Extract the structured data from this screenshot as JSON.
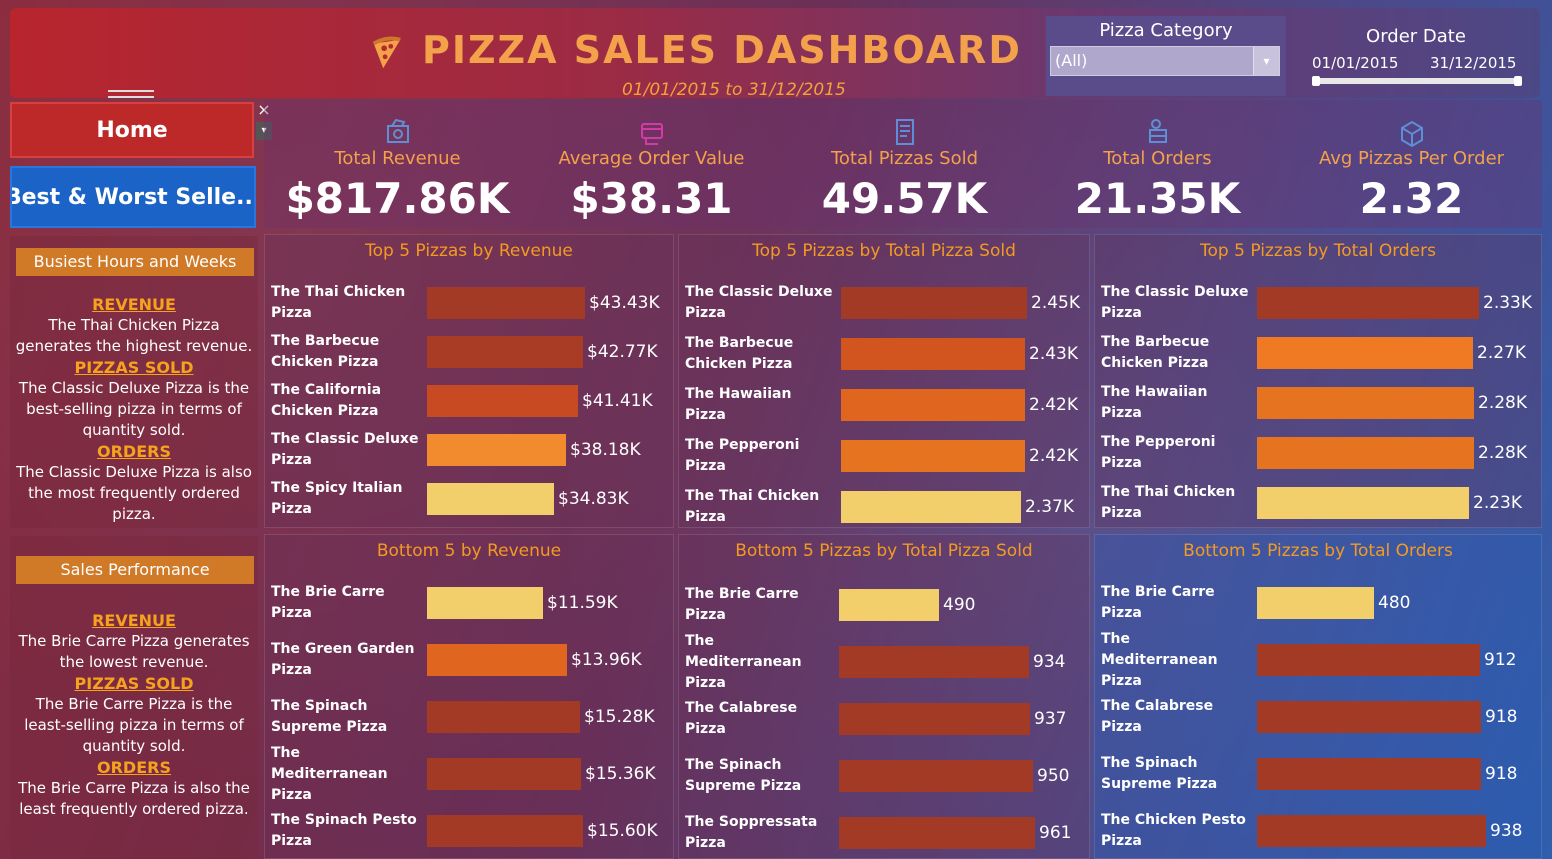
{
  "header": {
    "title": "PIZZA SALES DASHBOARD",
    "date_range": "01/01/2015  to 31/12/2015",
    "category_filter": {
      "label": "Pizza Category",
      "value": "(All)"
    },
    "order_date": {
      "label": "Order Date",
      "from": "01/01/2015",
      "to": "31/12/2015"
    }
  },
  "nav": {
    "home": "Home",
    "best_worst": "Best & Worst Selle...",
    "close": "×",
    "more": "▾"
  },
  "kpis": [
    {
      "label": "Total Revenue",
      "value": "$817.86K",
      "icon": "money-icon"
    },
    {
      "label": "Average Order Value",
      "value": "$38.31",
      "icon": "card-icon"
    },
    {
      "label": "Total Pizzas Sold",
      "value": "49.57K",
      "icon": "receipt-icon"
    },
    {
      "label": "Total Orders",
      "value": "21.35K",
      "icon": "delivery-icon"
    },
    {
      "label": "Avg Pizzas Per Order",
      "value": "2.32",
      "icon": "box-icon"
    }
  ],
  "side_top": {
    "heading": "Busiest Hours and Weeks",
    "h1": "REVENUE",
    "t1": "The Thai Chicken Pizza generates the highest revenue.",
    "h2": "PIZZAS SOLD",
    "t2": "The Classic Deluxe Pizza is the best-selling pizza in terms of quantity sold.",
    "h3": "ORDERS",
    "t3": "The Classic Deluxe Pizza is also the most frequently ordered pizza."
  },
  "side_bottom": {
    "heading": "Sales Performance",
    "h1": "REVENUE",
    "t1": "The Brie Carre Pizza generates the lowest revenue.",
    "h2": "PIZZAS SOLD",
    "t2": "The Brie Carre Pizza is the least-selling pizza in terms of quantity sold.",
    "h3": "ORDERS",
    "t3": "The Brie Carre Pizza is also the least frequently ordered pizza."
  },
  "colors": {
    "dark": "#a23a25",
    "mid": "#e0651f",
    "orange": "#f28a2e",
    "light": "#f2cf6b"
  },
  "chart_data": [
    {
      "id": "top-revenue",
      "type": "bar",
      "title": "Top 5 Pizzas by Revenue",
      "categories": [
        "The Thai Chicken Pizza",
        "The Barbecue Chicken Pizza",
        "The California Chicken Pizza",
        "The Classic Deluxe Pizza",
        "The Spicy Italian Pizza"
      ],
      "values": [
        43.43,
        42.77,
        41.41,
        38.18,
        34.83
      ],
      "labels": [
        "$43.43K",
        "$42.77K",
        "$41.41K",
        "$38.18K",
        "$34.83K"
      ],
      "colors": [
        "#a23a25",
        "#a83c24",
        "#c84a22",
        "#f28a2e",
        "#f2cf6b"
      ],
      "max": 43.43
    },
    {
      "id": "top-sold",
      "type": "bar",
      "title": "Top 5 Pizzas by Total Pizza Sold",
      "categories": [
        "The Classic Deluxe Pizza",
        "The Barbecue Chicken Pizza",
        "The Hawaiian Pizza",
        "The Pepperoni Pizza",
        "The Thai Chicken Pizza"
      ],
      "values": [
        2.45,
        2.43,
        2.42,
        2.42,
        2.37
      ],
      "labels": [
        "2.45K",
        "2.43K",
        "2.42K",
        "2.42K",
        "2.37K"
      ],
      "colors": [
        "#a23a25",
        "#d2541f",
        "#e0651f",
        "#e6731f",
        "#f2cf6b"
      ],
      "max": 2.45
    },
    {
      "id": "top-orders",
      "type": "bar",
      "title": "Top 5 Pizzas by Total Orders",
      "categories": [
        "The Classic Deluxe Pizza",
        "The Barbecue Chicken Pizza",
        "The Hawaiian Pizza",
        "The Pepperoni Pizza",
        "The Thai Chicken Pizza"
      ],
      "values": [
        2.33,
        2.27,
        2.28,
        2.28,
        2.23
      ],
      "labels": [
        "2.33K",
        "2.27K",
        "2.28K",
        "2.28K",
        "2.23K"
      ],
      "colors": [
        "#a23a25",
        "#f07a24",
        "#e6731f",
        "#e6731f",
        "#f2cf6b"
      ],
      "max": 2.33
    },
    {
      "id": "bottom-revenue",
      "type": "bar",
      "title": "Bottom 5 by Revenue",
      "categories": [
        "The Brie Carre Pizza",
        "The Green Garden Pizza",
        "The Spinach Supreme Pizza",
        "The Mediterranean Pizza",
        "The Spinach Pesto Pizza"
      ],
      "values": [
        11.59,
        13.96,
        15.28,
        15.36,
        15.6
      ],
      "labels": [
        "$11.59K",
        "$13.96K",
        "$15.28K",
        "$15.36K",
        "$15.60K"
      ],
      "colors": [
        "#f2cf6b",
        "#e0651f",
        "#a23a25",
        "#a23a25",
        "#a23a25"
      ],
      "max": 15.6
    },
    {
      "id": "bottom-sold",
      "type": "bar",
      "title": "Bottom 5 Pizzas by Total Pizza Sold",
      "categories": [
        "The Brie Carre Pizza",
        "The Mediterranean Pizza",
        "The Calabrese Pizza",
        "The Spinach Supreme Pizza",
        "The Soppressata Pizza"
      ],
      "values": [
        490,
        934,
        937,
        950,
        961
      ],
      "labels": [
        "490",
        "934",
        "937",
        "950",
        "961"
      ],
      "colors": [
        "#f2cf6b",
        "#a23a25",
        "#a23a25",
        "#a23a25",
        "#a23a25"
      ],
      "max": 961
    },
    {
      "id": "bottom-orders",
      "type": "bar",
      "title": "Bottom 5 Pizzas by Total Orders",
      "categories": [
        "The Brie Carre Pizza",
        "The Mediterranean Pizza",
        "The Calabrese Pizza",
        "The Spinach Supreme Pizza",
        "The Chicken Pesto Pizza"
      ],
      "values": [
        480,
        912,
        918,
        918,
        938
      ],
      "labels": [
        "480",
        "912",
        "918",
        "918",
        "938"
      ],
      "colors": [
        "#f2cf6b",
        "#a23a25",
        "#a23a25",
        "#a23a25",
        "#a23a25"
      ],
      "max": 938
    }
  ]
}
